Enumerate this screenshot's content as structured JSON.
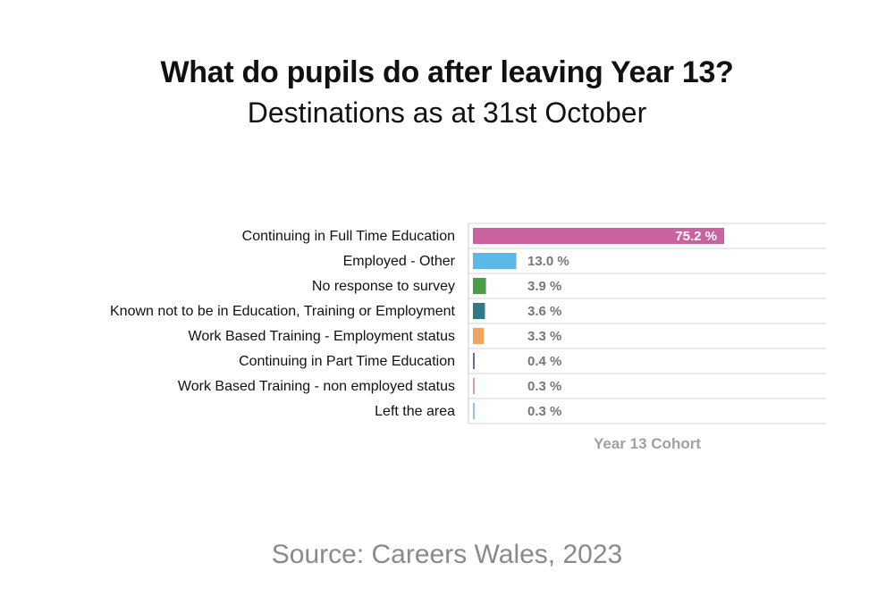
{
  "header": {
    "title": "What do pupils do after leaving Year 13?",
    "subtitle": "Destinations as at 31st October"
  },
  "footer": {
    "source": "Source: Careers Wales, 2023"
  },
  "chart_data": {
    "type": "bar",
    "orientation": "horizontal",
    "categories": [
      "Continuing in Full Time Education",
      "Employed - Other",
      "No response to survey",
      "Known not to be in Education, Training or Employment",
      "Work Based Training - Employment status",
      "Continuing in Part Time Education",
      "Work Based Training - non employed status",
      "Left the area"
    ],
    "values": [
      75.2,
      13.0,
      3.9,
      3.6,
      3.3,
      0.4,
      0.3,
      0.3
    ],
    "value_labels": [
      "75.2 %",
      "13.0 %",
      "3.9 %",
      "3.6 %",
      "3.3 %",
      "0.4 %",
      "0.3 %",
      "0.3 %"
    ],
    "colors": [
      "#c9629f",
      "#5bb8e8",
      "#4a9c47",
      "#2f7a8a",
      "#eda55f",
      "#6e6e8c",
      "#d49acb",
      "#8cc6e2"
    ],
    "xlabel": "Year 13 Cohort",
    "ylabel": "",
    "xlim": [
      0,
      100
    ],
    "grid": "horizontal row separators",
    "legend": "none"
  }
}
